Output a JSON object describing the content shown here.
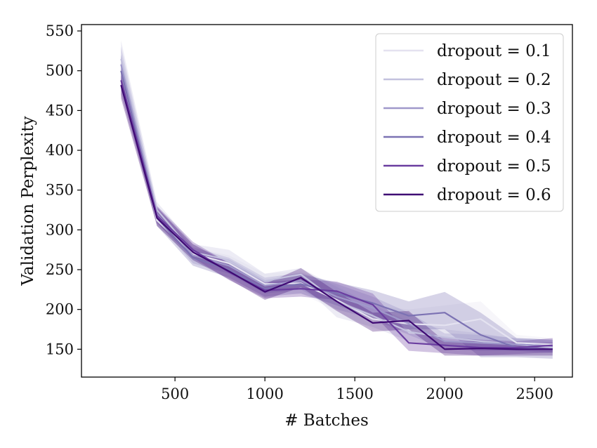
{
  "chart_data": {
    "type": "line",
    "title": "",
    "xlabel": "# Batches",
    "ylabel": "Validation Perplexity",
    "xlim": [
      -20,
      2710
    ],
    "ylim": [
      115,
      558
    ],
    "xticks": [
      500,
      1000,
      1500,
      2000,
      2500
    ],
    "yticks": [
      150,
      200,
      250,
      300,
      350,
      400,
      450,
      500,
      550
    ],
    "legend_position": "top-right",
    "grid": false,
    "x": [
      200,
      400,
      600,
      800,
      1000,
      1200,
      1400,
      1600,
      1800,
      2000,
      2200,
      2400,
      2600
    ],
    "series": [
      {
        "name": "dropout = 0.1",
        "color": "#e4e2f0",
        "values": [
          500,
          312,
          270,
          258,
          232,
          233,
          212,
          188,
          182,
          180,
          188,
          158,
          156
        ],
        "lower": [
          482,
          305,
          262,
          248,
          222,
          220,
          198,
          175,
          170,
          165,
          160,
          150,
          148
        ],
        "upper": [
          520,
          322,
          278,
          268,
          245,
          248,
          230,
          205,
          200,
          205,
          210,
          168,
          164
        ]
      },
      {
        "name": "dropout = 0.2",
        "color": "#c3c1de",
        "values": [
          515,
          325,
          272,
          262,
          236,
          244,
          210,
          192,
          172,
          165,
          160,
          156,
          152
        ],
        "lower": [
          495,
          315,
          264,
          250,
          226,
          232,
          190,
          178,
          160,
          155,
          150,
          148,
          145
        ],
        "upper": [
          538,
          335,
          282,
          275,
          245,
          252,
          228,
          206,
          185,
          175,
          170,
          163,
          160
        ]
      },
      {
        "name": "dropout = 0.3",
        "color": "#9f98ca",
        "values": [
          508,
          320,
          268,
          255,
          230,
          236,
          216,
          202,
          182,
          160,
          158,
          156,
          154
        ],
        "lower": [
          488,
          310,
          258,
          245,
          220,
          225,
          200,
          188,
          168,
          150,
          148,
          148,
          146
        ],
        "upper": [
          530,
          330,
          278,
          265,
          240,
          246,
          232,
          216,
          196,
          170,
          168,
          164,
          162
        ]
      },
      {
        "name": "dropout = 0.4",
        "color": "#7c72b3",
        "values": [
          500,
          315,
          265,
          250,
          226,
          232,
          220,
          208,
          192,
          196,
          168,
          152,
          150
        ],
        "lower": [
          480,
          305,
          255,
          240,
          216,
          220,
          205,
          190,
          175,
          175,
          140,
          140,
          138
        ],
        "upper": [
          520,
          326,
          275,
          260,
          236,
          244,
          234,
          224,
          210,
          222,
          196,
          164,
          162
        ]
      },
      {
        "name": "dropout = 0.5",
        "color": "#6a3da0",
        "values": [
          488,
          318,
          275,
          247,
          224,
          226,
          223,
          206,
          158,
          155,
          152,
          152,
          155
        ],
        "lower": [
          470,
          308,
          265,
          237,
          214,
          216,
          212,
          194,
          148,
          145,
          142,
          144,
          146
        ],
        "upper": [
          505,
          330,
          285,
          258,
          234,
          238,
          235,
          220,
          170,
          165,
          162,
          160,
          164
        ]
      },
      {
        "name": "dropout = 0.6",
        "color": "#3f0a74",
        "values": [
          482,
          315,
          272,
          248,
          222,
          240,
          210,
          183,
          186,
          150,
          151,
          150,
          150
        ],
        "lower": [
          465,
          305,
          262,
          238,
          212,
          228,
          198,
          172,
          175,
          142,
          142,
          142,
          142
        ],
        "upper": [
          500,
          328,
          282,
          258,
          232,
          252,
          222,
          196,
          198,
          160,
          160,
          158,
          158
        ]
      }
    ]
  }
}
